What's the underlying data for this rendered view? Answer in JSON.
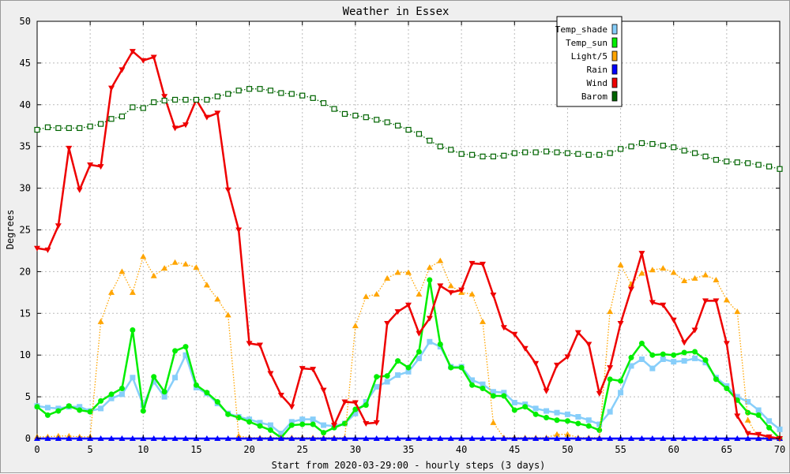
{
  "chart_data": {
    "type": "line",
    "title": "Weather in Essex",
    "xlabel": "Start from 2020-03-29:00 - hourly steps (3 days)",
    "ylabel": "Degrees",
    "xlim": [
      0,
      70
    ],
    "ylim": [
      0,
      50
    ],
    "xticks": [
      0,
      5,
      10,
      15,
      20,
      25,
      30,
      35,
      40,
      45,
      50,
      55,
      60,
      65,
      70
    ],
    "yticks": [
      0,
      5,
      10,
      15,
      20,
      25,
      30,
      35,
      40,
      45,
      50
    ],
    "grid": true,
    "legend_position": "top-right",
    "series": [
      {
        "name": "Temp_shade",
        "color": "#87cefa",
        "marker": "square",
        "line": "solid",
        "values": [
          3.9,
          3.7,
          3.6,
          3.8,
          3.8,
          3.3,
          3.6,
          4.8,
          5.3,
          7.3,
          4.0,
          6.8,
          5.0,
          7.3,
          10.0,
          6.1,
          5.4,
          4.2,
          3.0,
          2.6,
          2.3,
          1.9,
          1.6,
          0.6,
          2.0,
          2.3,
          2.3,
          1.6,
          1.5,
          1.8,
          3.0,
          4.4,
          6.2,
          6.8,
          7.6,
          8.0,
          9.6,
          11.6,
          11.0,
          8.6,
          8.6,
          7.0,
          6.5,
          5.6,
          5.5,
          4.3,
          4.1,
          3.6,
          3.3,
          3.1,
          2.9,
          2.6,
          2.2,
          1.7,
          3.2,
          5.5,
          8.7,
          9.5,
          8.4,
          9.5,
          9.2,
          9.3,
          9.6,
          9.1,
          7.3,
          6.3,
          5.0,
          4.4,
          3.4,
          2.1,
          1.1
        ]
      },
      {
        "name": "Temp_sun",
        "color": "#00ee00",
        "marker": "circle",
        "line": "solid",
        "values": [
          3.8,
          2.8,
          3.3,
          3.9,
          3.4,
          3.2,
          4.5,
          5.3,
          6.0,
          13.0,
          3.3,
          7.4,
          5.6,
          10.5,
          11.0,
          6.4,
          5.5,
          4.4,
          2.9,
          2.5,
          2.0,
          1.5,
          1.0,
          0.1,
          1.6,
          1.7,
          1.7,
          0.7,
          1.3,
          1.8,
          3.5,
          4.0,
          7.4,
          7.5,
          9.3,
          8.5,
          10.4,
          19.0,
          11.3,
          8.5,
          8.5,
          6.4,
          6.0,
          5.1,
          5.1,
          3.4,
          3.8,
          2.9,
          2.5,
          2.2,
          2.1,
          1.8,
          1.5,
          1.0,
          7.1,
          6.9,
          9.7,
          11.4,
          10.0,
          10.1,
          10.0,
          10.3,
          10.4,
          9.4,
          7.1,
          6.0,
          4.6,
          3.1,
          2.8,
          1.3,
          0.0
        ]
      },
      {
        "name": "Light/5",
        "color": "#ffa500",
        "marker": "triangle-up",
        "line": "dotted",
        "values": [
          0.2,
          0.2,
          0.3,
          0.3,
          0.2,
          0.2,
          14.0,
          17.5,
          20.0,
          17.5,
          21.8,
          19.5,
          20.4,
          21.1,
          20.9,
          20.5,
          18.4,
          16.7,
          14.8,
          0.3,
          0.1,
          0.1,
          0.1,
          0.1,
          0.1,
          0.1,
          0.1,
          0.1,
          0.1,
          0.1,
          13.5,
          17.0,
          17.3,
          19.2,
          19.9,
          19.9,
          17.3,
          20.5,
          21.3,
          18.3,
          17.5,
          17.3,
          14.0,
          1.9,
          0.1,
          0.1,
          0.1,
          0.1,
          0.1,
          0.5,
          0.5,
          0.1,
          0.1,
          0.1,
          15.2,
          20.8,
          18.5,
          19.8,
          20.2,
          20.4,
          19.9,
          18.9,
          19.2,
          19.6,
          19.0,
          16.6,
          15.2,
          2.2,
          0.1,
          0.1,
          0.1
        ]
      },
      {
        "name": "Rain",
        "color": "#0000ff",
        "marker": "triangle-up",
        "line": "solid",
        "values": [
          0,
          0,
          0,
          0,
          0,
          0,
          0,
          0,
          0,
          0,
          0,
          0,
          0,
          0,
          0,
          0,
          0,
          0,
          0,
          0,
          0,
          0,
          0,
          0,
          0,
          0,
          0,
          0,
          0,
          0,
          0,
          0,
          0,
          0,
          0,
          0,
          0,
          0,
          0,
          0,
          0,
          0,
          0,
          0,
          0,
          0,
          0,
          0,
          0,
          0,
          0,
          0,
          0,
          0,
          0,
          0,
          0,
          0,
          0,
          0,
          0,
          0,
          0,
          0,
          0,
          0,
          0,
          0,
          0,
          0,
          0
        ]
      },
      {
        "name": "Wind",
        "color": "#ee0000",
        "marker": "triangle-down",
        "line": "solid",
        "values": [
          22.8,
          22.6,
          25.5,
          34.8,
          29.8,
          32.8,
          32.6,
          42.0,
          44.2,
          46.4,
          45.3,
          45.7,
          41.0,
          37.2,
          37.6,
          40.6,
          38.5,
          39.0,
          29.8,
          25.0,
          11.4,
          11.2,
          7.8,
          5.2,
          3.8,
          8.4,
          8.3,
          5.8,
          1.6,
          4.4,
          4.3,
          1.8,
          1.9,
          13.8,
          15.2,
          16.0,
          12.6,
          14.4,
          18.3,
          17.5,
          17.8,
          21.0,
          20.9,
          17.2,
          13.3,
          12.5,
          10.8,
          9.0,
          5.7,
          8.8,
          9.8,
          12.7,
          11.3,
          5.4,
          8.5,
          13.8,
          17.9,
          22.2,
          16.3,
          16.0,
          14.2,
          11.5,
          13.0,
          16.5,
          16.5,
          11.4,
          2.7,
          0.6,
          0.5,
          0.2,
          0.0
        ]
      },
      {
        "name": "Barom",
        "color": "#006400",
        "marker": "square-open",
        "line": "dotted",
        "values": [
          37.0,
          37.3,
          37.2,
          37.2,
          37.2,
          37.4,
          37.7,
          38.3,
          38.6,
          39.7,
          39.6,
          40.3,
          40.5,
          40.6,
          40.6,
          40.6,
          40.6,
          41.0,
          41.3,
          41.7,
          41.9,
          41.9,
          41.7,
          41.4,
          41.3,
          41.1,
          40.8,
          40.2,
          39.5,
          38.9,
          38.7,
          38.5,
          38.2,
          37.9,
          37.5,
          37.0,
          36.5,
          35.7,
          35.0,
          34.6,
          34.1,
          34.0,
          33.8,
          33.8,
          33.9,
          34.2,
          34.3,
          34.3,
          34.4,
          34.3,
          34.2,
          34.1,
          34.0,
          34.0,
          34.2,
          34.7,
          35.0,
          35.4,
          35.3,
          35.1,
          34.9,
          34.5,
          34.2,
          33.8,
          33.4,
          33.2,
          33.1,
          33.0,
          32.8,
          32.6,
          32.3
        ]
      }
    ]
  }
}
